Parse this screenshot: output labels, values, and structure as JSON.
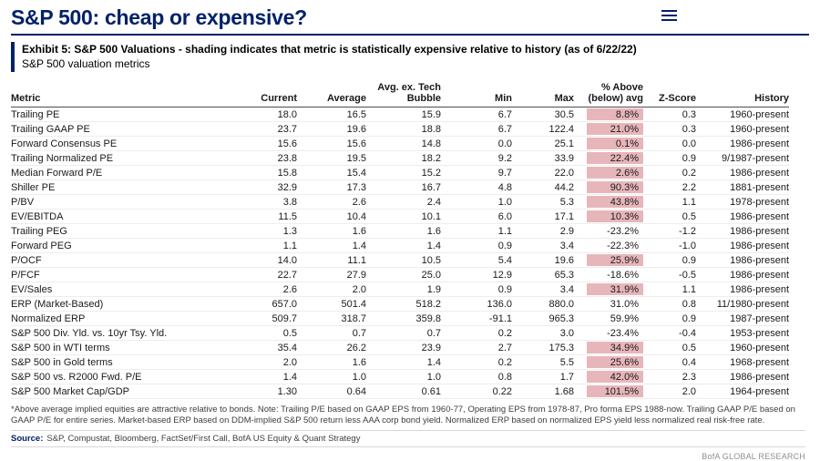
{
  "header": {
    "title": "S&P 500: cheap or expensive?",
    "menu_icon": "hamburger-menu-icon"
  },
  "exhibit": {
    "label": "Exhibit 5: S&P 500 Valuations - shading indicates that metric is statistically expensive relative to history (as of 6/22/22)",
    "subtitle": "S&P 500 valuation metrics"
  },
  "table": {
    "headers": {
      "metric": "Metric",
      "current": "Current",
      "average": "Average",
      "avg_ex_tech_line1": "Avg. ex. Tech",
      "avg_ex_tech_line2": "Bubble",
      "min": "Min",
      "max": "Max",
      "pct_line1": "% Above",
      "pct_line2": "(below) avg",
      "z_score": "Z-Score",
      "history": "History"
    },
    "rows": [
      {
        "metric": "Trailing PE",
        "current": "18.0",
        "avg": "16.5",
        "avg_ex_tech": "15.9",
        "min": "6.7",
        "max": "30.5",
        "pct_above": "8.8%",
        "z_score": "0.3",
        "history": "1960-present",
        "shaded": true
      },
      {
        "metric": "Trailing GAAP PE",
        "current": "23.7",
        "avg": "19.6",
        "avg_ex_tech": "18.8",
        "min": "6.7",
        "max": "122.4",
        "pct_above": "21.0%",
        "z_score": "0.3",
        "history": "1960-present",
        "shaded": true
      },
      {
        "metric": "Forward Consensus PE",
        "current": "15.6",
        "avg": "15.6",
        "avg_ex_tech": "14.8",
        "min": "0.0",
        "max": "25.1",
        "pct_above": "0.1%",
        "z_score": "0.0",
        "history": "1986-present",
        "shaded": true
      },
      {
        "metric": "Trailing Normalized PE",
        "current": "23.8",
        "avg": "19.5",
        "avg_ex_tech": "18.2",
        "min": "9.2",
        "max": "33.9",
        "pct_above": "22.4%",
        "z_score": "0.9",
        "history": "9/1987-present",
        "shaded": true
      },
      {
        "metric": "Median Forward P/E",
        "current": "15.8",
        "avg": "15.4",
        "avg_ex_tech": "15.2",
        "min": "9.7",
        "max": "22.0",
        "pct_above": "2.6%",
        "z_score": "0.2",
        "history": "1986-present",
        "shaded": true
      },
      {
        "metric": "Shiller PE",
        "current": "32.9",
        "avg": "17.3",
        "avg_ex_tech": "16.7",
        "min": "4.8",
        "max": "44.2",
        "pct_above": "90.3%",
        "z_score": "2.2",
        "history": "1881-present",
        "shaded": true
      },
      {
        "metric": "P/BV",
        "current": "3.8",
        "avg": "2.6",
        "avg_ex_tech": "2.4",
        "min": "1.0",
        "max": "5.3",
        "pct_above": "43.8%",
        "z_score": "1.1",
        "history": "1978-present",
        "shaded": true
      },
      {
        "metric": "EV/EBITDA",
        "current": "11.5",
        "avg": "10.4",
        "avg_ex_tech": "10.1",
        "min": "6.0",
        "max": "17.1",
        "pct_above": "10.3%",
        "z_score": "0.5",
        "history": "1986-present",
        "shaded": true
      },
      {
        "metric": "Trailing PEG",
        "current": "1.3",
        "avg": "1.6",
        "avg_ex_tech": "1.6",
        "min": "1.1",
        "max": "2.9",
        "pct_above": "-23.2%",
        "z_score": "-1.2",
        "history": "1986-present",
        "shaded": false
      },
      {
        "metric": "Forward PEG",
        "current": "1.1",
        "avg": "1.4",
        "avg_ex_tech": "1.4",
        "min": "0.9",
        "max": "3.4",
        "pct_above": "-22.3%",
        "z_score": "-1.0",
        "history": "1986-present",
        "shaded": false
      },
      {
        "metric": "P/OCF",
        "current": "14.0",
        "avg": "11.1",
        "avg_ex_tech": "10.5",
        "min": "5.4",
        "max": "19.6",
        "pct_above": "25.9%",
        "z_score": "0.9",
        "history": "1986-present",
        "shaded": true
      },
      {
        "metric": "P/FCF",
        "current": "22.7",
        "avg": "27.9",
        "avg_ex_tech": "25.0",
        "min": "12.9",
        "max": "65.3",
        "pct_above": "-18.6%",
        "z_score": "-0.5",
        "history": "1986-present",
        "shaded": false
      },
      {
        "metric": "EV/Sales",
        "current": "2.6",
        "avg": "2.0",
        "avg_ex_tech": "1.9",
        "min": "0.9",
        "max": "3.4",
        "pct_above": "31.9%",
        "z_score": "1.1",
        "history": "1986-present",
        "shaded": true
      },
      {
        "metric": "ERP (Market-Based)",
        "current": "657.0",
        "avg": "501.4",
        "avg_ex_tech": "518.2",
        "min": "136.0",
        "max": "880.0",
        "pct_above": "31.0%",
        "z_score": "0.8",
        "history": "11/1980-present",
        "shaded": false
      },
      {
        "metric": "Normalized ERP",
        "current": "509.7",
        "avg": "318.7",
        "avg_ex_tech": "359.8",
        "min": "-91.1",
        "max": "965.3",
        "pct_above": "59.9%",
        "z_score": "0.9",
        "history": "1987-present",
        "shaded": false
      },
      {
        "metric": "S&P 500 Div. Yld. vs. 10yr Tsy. Yld.",
        "current": "0.5",
        "avg": "0.7",
        "avg_ex_tech": "0.7",
        "min": "0.2",
        "max": "3.0",
        "pct_above": "-23.4%",
        "z_score": "-0.4",
        "history": "1953-present",
        "shaded": false
      },
      {
        "metric": "S&P 500 in WTI terms",
        "current": "35.4",
        "avg": "26.2",
        "avg_ex_tech": "23.9",
        "min": "2.7",
        "max": "175.3",
        "pct_above": "34.9%",
        "z_score": "0.5",
        "history": "1960-present",
        "shaded": true
      },
      {
        "metric": "S&P 500 in Gold terms",
        "current": "2.0",
        "avg": "1.6",
        "avg_ex_tech": "1.4",
        "min": "0.2",
        "max": "5.5",
        "pct_above": "25.6%",
        "z_score": "0.4",
        "history": "1968-present",
        "shaded": true
      },
      {
        "metric": "S&P 500 vs. R2000 Fwd. P/E",
        "current": "1.4",
        "avg": "1.0",
        "avg_ex_tech": "1.0",
        "min": "0.8",
        "max": "1.7",
        "pct_above": "42.0%",
        "z_score": "2.3",
        "history": "1986-present",
        "shaded": true
      },
      {
        "metric": "S&P 500 Market Cap/GDP",
        "current": "1.30",
        "avg": "0.64",
        "avg_ex_tech": "0.61",
        "min": "0.22",
        "max": "1.68",
        "pct_above": "101.5%",
        "z_score": "2.0",
        "history": "1964-present",
        "shaded": true
      }
    ]
  },
  "footnote": "*Above average implied equities are attractive relative to bonds. Note: Trailing P/E based on GAAP EPS from 1960-77, Operating EPS from 1978-87, Pro forma EPS 1988-now. Trailing GAAP P/E based on GAAP P/E for entire series. Market-based ERP based on DDM-implied S&P 500 return less AAA corp bond yield. Normalized ERP based on normalized EPS yield less normalized real risk-free rate.",
  "source": {
    "label": "Source:",
    "text": "S&P, Compustat, Bloomberg, FactSet/First Call, BofA US Equity & Quant Strategy"
  },
  "branding": "BofA GLOBAL RESEARCH",
  "colors": {
    "navy": "#012169",
    "shade": "#e7b6ba"
  }
}
